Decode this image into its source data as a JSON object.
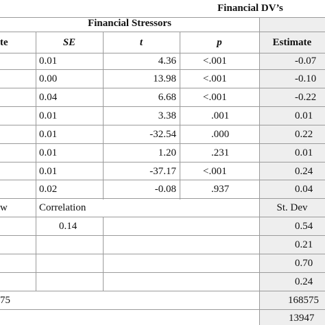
{
  "header": {
    "group_right": "Financial DV’s",
    "group_left": "Financial Stressors"
  },
  "columns": {
    "estimate_left_partial": "te",
    "se": "SE",
    "t": "t",
    "p": "p",
    "estimate_right": "Estimate"
  },
  "rows": [
    {
      "se": "0.01",
      "t": "4.36",
      "p": "<.001",
      "estimate": "-0.07"
    },
    {
      "se": "0.00",
      "t": "13.98",
      "p": "<.001",
      "estimate": "-0.10"
    },
    {
      "se": "0.04",
      "t": "6.68",
      "p": "<.001",
      "estimate": "-0.22"
    },
    {
      "se": "0.01",
      "t": "3.38",
      "p": ".001",
      "estimate": "0.01"
    },
    {
      "se": "0.01",
      "t": "-32.54",
      "p": ".000",
      "estimate": "0.22"
    },
    {
      "se": "0.01",
      "t": "1.20",
      "p": ".231",
      "estimate": "0.01"
    },
    {
      "se": "0.01",
      "t": "-37.17",
      "p": "<.001",
      "estimate": "0.24"
    },
    {
      "se": "0.02",
      "t": "-0.08",
      "p": ".937",
      "estimate": "0.04"
    }
  ],
  "random": {
    "col_left_partial": "w",
    "col_correlation": "Correlation",
    "col_stdev": "St. Dev",
    "rows": [
      {
        "correlation": "0.14",
        "stdev": "0.54"
      },
      {
        "correlation": "",
        "stdev": "0.21"
      },
      {
        "correlation": "",
        "stdev": "0.70"
      },
      {
        "correlation": "",
        "stdev": "0.24"
      }
    ]
  },
  "footer": [
    {
      "left": "75",
      "right": "168575"
    },
    {
      "left": "",
      "right": "13947"
    }
  ]
}
